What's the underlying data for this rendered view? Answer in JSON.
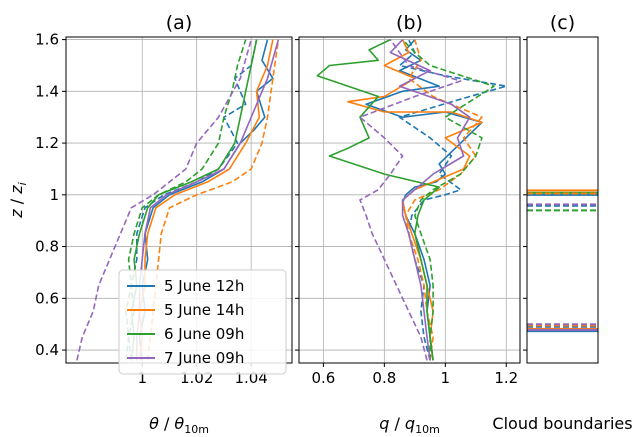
{
  "chart_data": [
    {
      "panel": "(a)",
      "type": "line",
      "title": "(a)",
      "xlabel": "θ / θ_10m",
      "ylabel": "z / z_i",
      "xlim": [
        0.972,
        1.055
      ],
      "ylim": [
        0.35,
        1.61
      ],
      "xticks": [
        1,
        1.02,
        1.04
      ],
      "xtick_labels": [
        "1",
        "1.02",
        "1.04"
      ],
      "yticks": [
        0.4,
        0.6,
        0.8,
        1,
        1.2,
        1.4,
        1.6
      ],
      "ytick_labels": [
        "0.4",
        "0.6",
        "0.8",
        "1",
        "1.2",
        "1.4",
        "1.6"
      ],
      "grid": true,
      "legend": "lower-right",
      "series": [
        {
          "name": "5 June 12h",
          "style": "solid",
          "color": "#1f77b4",
          "x": [
            1.0,
            0.999,
            1.001,
            1.0,
            1.002,
            1.001,
            1.004,
            1.01,
            1.022,
            1.03,
            1.036,
            1.041,
            1.045,
            1.042,
            1.048,
            1.044,
            1.046
          ],
          "y": [
            0.36,
            0.45,
            0.55,
            0.65,
            0.75,
            0.85,
            0.95,
            1.0,
            1.05,
            1.1,
            1.2,
            1.25,
            1.3,
            1.4,
            1.45,
            1.52,
            1.6
          ]
        },
        {
          "name": "5 June 12h",
          "style": "dashed",
          "color": "#1f77b4",
          "x": [
            0.996,
            0.995,
            0.997,
            0.996,
            0.998,
            0.998,
            1.001,
            1.008,
            1.02,
            1.028,
            1.035,
            1.03,
            1.038,
            1.034,
            1.04,
            1.042
          ],
          "y": [
            0.36,
            0.45,
            0.55,
            0.65,
            0.75,
            0.85,
            0.95,
            1.0,
            1.05,
            1.1,
            1.2,
            1.3,
            1.35,
            1.45,
            1.5,
            1.6
          ]
        },
        {
          "name": "5 June 14h",
          "style": "solid",
          "color": "#ff7f0e",
          "x": [
            0.999,
            1.0,
            0.999,
            1.001,
            1.001,
            1.002,
            1.005,
            1.012,
            1.024,
            1.032,
            1.038,
            1.043,
            1.042,
            1.046,
            1.048
          ],
          "y": [
            0.36,
            0.45,
            0.55,
            0.65,
            0.75,
            0.85,
            0.95,
            1.0,
            1.05,
            1.1,
            1.2,
            1.3,
            1.4,
            1.5,
            1.6
          ]
        },
        {
          "name": "5 June 14h",
          "style": "dashed",
          "color": "#ff7f0e",
          "x": [
            1.002,
            1.003,
            1.004,
            1.005,
            1.006,
            1.007,
            1.01,
            1.02,
            1.033,
            1.04,
            1.044,
            1.046,
            1.048,
            1.05
          ],
          "y": [
            0.36,
            0.45,
            0.55,
            0.65,
            0.75,
            0.85,
            0.95,
            1.0,
            1.05,
            1.1,
            1.2,
            1.3,
            1.45,
            1.6
          ]
        },
        {
          "name": "6 June 09h",
          "style": "solid",
          "color": "#2ca02c",
          "x": [
            0.996,
            0.997,
            0.996,
            0.998,
            0.997,
            0.999,
            1.002,
            1.006,
            1.018,
            1.028,
            1.034,
            1.036,
            1.038,
            1.04,
            1.042
          ],
          "y": [
            0.36,
            0.45,
            0.55,
            0.65,
            0.75,
            0.85,
            0.95,
            1.0,
            1.05,
            1.1,
            1.2,
            1.3,
            1.4,
            1.5,
            1.6
          ]
        },
        {
          "name": "6 June 09h",
          "style": "dashed",
          "color": "#2ca02c",
          "x": [
            0.994,
            0.995,
            0.994,
            0.996,
            0.995,
            0.997,
            1.0,
            1.006,
            1.016,
            1.022,
            1.028,
            1.03,
            1.033,
            1.035,
            1.038
          ],
          "y": [
            0.36,
            0.45,
            0.55,
            0.65,
            0.75,
            0.85,
            0.95,
            1.0,
            1.05,
            1.1,
            1.2,
            1.3,
            1.4,
            1.5,
            1.6
          ]
        },
        {
          "name": "7 June 09h",
          "style": "solid",
          "color": "#9467bd",
          "x": [
            0.998,
            0.998,
            0.999,
            0.999,
            1.0,
            1.001,
            1.003,
            1.009,
            1.02,
            1.03,
            1.036,
            1.04,
            1.046,
            1.05
          ],
          "y": [
            0.36,
            0.45,
            0.55,
            0.65,
            0.75,
            0.85,
            0.95,
            1.0,
            1.05,
            1.1,
            1.2,
            1.3,
            1.45,
            1.6
          ]
        },
        {
          "name": "7 June 09h",
          "style": "dashed",
          "color": "#9467bd",
          "x": [
            0.976,
            0.978,
            0.982,
            0.984,
            0.988,
            0.992,
            0.996,
            1.004,
            1.01,
            1.016,
            1.02,
            1.028,
            1.036,
            1.04
          ],
          "y": [
            0.36,
            0.45,
            0.55,
            0.65,
            0.75,
            0.85,
            0.95,
            1.0,
            1.05,
            1.1,
            1.2,
            1.3,
            1.45,
            1.6
          ]
        }
      ]
    },
    {
      "panel": "(b)",
      "type": "line",
      "title": "(b)",
      "xlabel": "q / q_10m",
      "ylabel": "",
      "xlim": [
        0.52,
        1.245
      ],
      "ylim": [
        0.35,
        1.61
      ],
      "xticks": [
        0.6,
        0.8,
        1,
        1.2
      ],
      "xtick_labels": [
        "0.6",
        "0.8",
        "1",
        "1.2"
      ],
      "grid": true,
      "series": [
        {
          "name": "5 June 12h",
          "style": "solid",
          "color": "#1f77b4",
          "x": [
            0.96,
            0.95,
            0.94,
            0.95,
            0.93,
            0.9,
            0.87,
            0.86,
            0.87,
            0.9,
            0.97,
            1.0,
            0.98,
            1.05,
            1.12,
            1.0,
            0.86,
            0.74,
            0.86,
            0.98,
            0.85,
            0.92,
            0.87,
            0.9
          ],
          "y": [
            0.36,
            0.45,
            0.55,
            0.65,
            0.75,
            0.85,
            0.92,
            0.97,
            1.0,
            1.03,
            1.05,
            1.08,
            1.12,
            1.2,
            1.28,
            1.32,
            1.3,
            1.35,
            1.4,
            1.42,
            1.48,
            1.52,
            1.56,
            1.6
          ]
        },
        {
          "name": "5 June 12h",
          "style": "dashed",
          "color": "#1f77b4",
          "x": [
            0.95,
            0.93,
            0.92,
            0.93,
            0.9,
            0.88,
            0.89,
            0.93,
            1.0,
            1.05,
            0.98,
            1.02,
            0.95,
            0.85,
            1.08,
            1.2,
            1.0,
            0.85,
            0.9,
            0.88
          ],
          "y": [
            0.36,
            0.45,
            0.55,
            0.65,
            0.75,
            0.85,
            0.92,
            0.98,
            1.0,
            1.02,
            1.08,
            1.15,
            1.22,
            1.3,
            1.38,
            1.42,
            1.46,
            1.5,
            1.55,
            1.6
          ]
        },
        {
          "name": "5 June 14h",
          "style": "solid",
          "color": "#ff7f0e",
          "x": [
            0.96,
            0.95,
            0.96,
            0.94,
            0.92,
            0.89,
            0.87,
            0.86,
            0.9,
            0.96,
            1.06,
            1.08,
            1.0,
            1.12,
            1.02,
            0.8,
            0.68,
            0.8,
            0.9,
            0.8,
            0.88,
            0.86
          ],
          "y": [
            0.36,
            0.45,
            0.55,
            0.65,
            0.75,
            0.85,
            0.92,
            0.98,
            1.02,
            1.05,
            1.1,
            1.15,
            1.22,
            1.28,
            1.32,
            1.32,
            1.36,
            1.38,
            1.45,
            1.5,
            1.55,
            1.6
          ]
        },
        {
          "name": "5 June 14h",
          "style": "dashed",
          "color": "#ff7f0e",
          "x": [
            0.95,
            0.96,
            0.94,
            0.93,
            0.91,
            0.88,
            0.87,
            0.9,
            0.98,
            1.05,
            1.1,
            1.06,
            1.12,
            0.96,
            0.88,
            0.92,
            0.9
          ],
          "y": [
            0.36,
            0.45,
            0.55,
            0.65,
            0.75,
            0.85,
            0.92,
            0.98,
            1.02,
            1.08,
            1.15,
            1.22,
            1.3,
            1.38,
            1.45,
            1.52,
            1.6
          ]
        },
        {
          "name": "6 June 09h",
          "style": "solid",
          "color": "#2ca02c",
          "x": [
            0.96,
            0.95,
            0.94,
            0.94,
            0.92,
            0.9,
            0.91,
            0.93,
            0.98,
            0.8,
            0.62,
            0.68,
            0.75,
            0.72,
            0.78,
            0.58,
            0.62,
            0.78,
            0.75,
            0.82
          ],
          "y": [
            0.36,
            0.45,
            0.55,
            0.65,
            0.75,
            0.85,
            0.92,
            0.98,
            1.03,
            1.08,
            1.15,
            1.18,
            1.22,
            1.3,
            1.38,
            1.46,
            1.5,
            1.52,
            1.56,
            1.6
          ]
        },
        {
          "name": "6 June 09h",
          "style": "dashed",
          "color": "#2ca02c",
          "x": [
            0.95,
            0.95,
            0.96,
            0.96,
            0.95,
            0.92,
            0.9,
            0.92,
            0.96,
            1.05,
            1.1,
            1.12,
            1.0,
            1.08,
            1.16,
            0.95,
            0.9,
            0.86
          ],
          "y": [
            0.36,
            0.45,
            0.55,
            0.65,
            0.75,
            0.85,
            0.92,
            0.98,
            1.02,
            1.08,
            1.15,
            1.22,
            1.3,
            1.36,
            1.42,
            1.5,
            1.55,
            1.6
          ]
        },
        {
          "name": "7 June 09h",
          "style": "solid",
          "color": "#9467bd",
          "x": [
            0.95,
            0.94,
            0.93,
            0.92,
            0.9,
            0.88,
            0.86,
            0.86,
            0.9,
            0.96,
            1.06,
            1.04,
            1.08,
            1.02,
            0.85,
            0.95,
            0.82,
            0.86
          ],
          "y": [
            0.36,
            0.45,
            0.55,
            0.65,
            0.75,
            0.85,
            0.92,
            0.98,
            1.02,
            1.08,
            1.15,
            1.22,
            1.3,
            1.35,
            1.42,
            1.48,
            1.55,
            1.6
          ]
        },
        {
          "name": "7 June 09h",
          "style": "dashed",
          "color": "#9467bd",
          "x": [
            0.94,
            0.92,
            0.88,
            0.84,
            0.8,
            0.76,
            0.74,
            0.72,
            0.78,
            0.82,
            0.86,
            0.8,
            0.72,
            0.9,
            1.05,
            0.88,
            0.82
          ],
          "y": [
            0.36,
            0.45,
            0.55,
            0.65,
            0.75,
            0.85,
            0.92,
            0.98,
            1.02,
            1.08,
            1.15,
            1.22,
            1.3,
            1.38,
            1.44,
            1.5,
            1.6
          ]
        }
      ]
    },
    {
      "panel": "(c)",
      "type": "line",
      "title": "(c)",
      "xlabel": "Cloud boundaries",
      "ylabel": "",
      "ylim": [
        0.35,
        1.61
      ],
      "grid": false,
      "levels": [
        {
          "name": "5 June 12h",
          "style": "solid",
          "color": "#1f77b4",
          "values": [
            1.0,
            0.473
          ]
        },
        {
          "name": "5 June 14h",
          "style": "solid",
          "color": "#ff7f0e",
          "values": [
            1.017,
            0.482
          ]
        },
        {
          "name": "6 June 09h",
          "style": "solid",
          "color": "#2ca02c",
          "values": [
            1.008
          ]
        },
        {
          "name": "7 June 09h",
          "style": "solid",
          "color": "#9467bd",
          "values": [
            0.478
          ]
        },
        {
          "name": "5 June 12h",
          "style": "dashed",
          "color": "#1f77b4",
          "values": [
            0.958,
            0.49
          ]
        },
        {
          "name": "5 June 14h",
          "style": "dashed",
          "color": "#ff7f0e",
          "values": [
            1.005,
            0.495
          ]
        },
        {
          "name": "6 June 09h",
          "style": "dashed",
          "color": "#2ca02c",
          "values": [
            0.94
          ]
        },
        {
          "name": "7 June 09h",
          "style": "dashed",
          "color": "#9467bd",
          "values": [
            0.963,
            0.5
          ]
        }
      ]
    }
  ],
  "legend": {
    "entries": [
      {
        "label": "5 June 12h",
        "color": "#1f77b4"
      },
      {
        "label": "5 June 14h",
        "color": "#ff7f0e"
      },
      {
        "label": "6 June 09h",
        "color": "#2ca02c"
      },
      {
        "label": "7 June 09h",
        "color": "#9467bd"
      }
    ]
  }
}
